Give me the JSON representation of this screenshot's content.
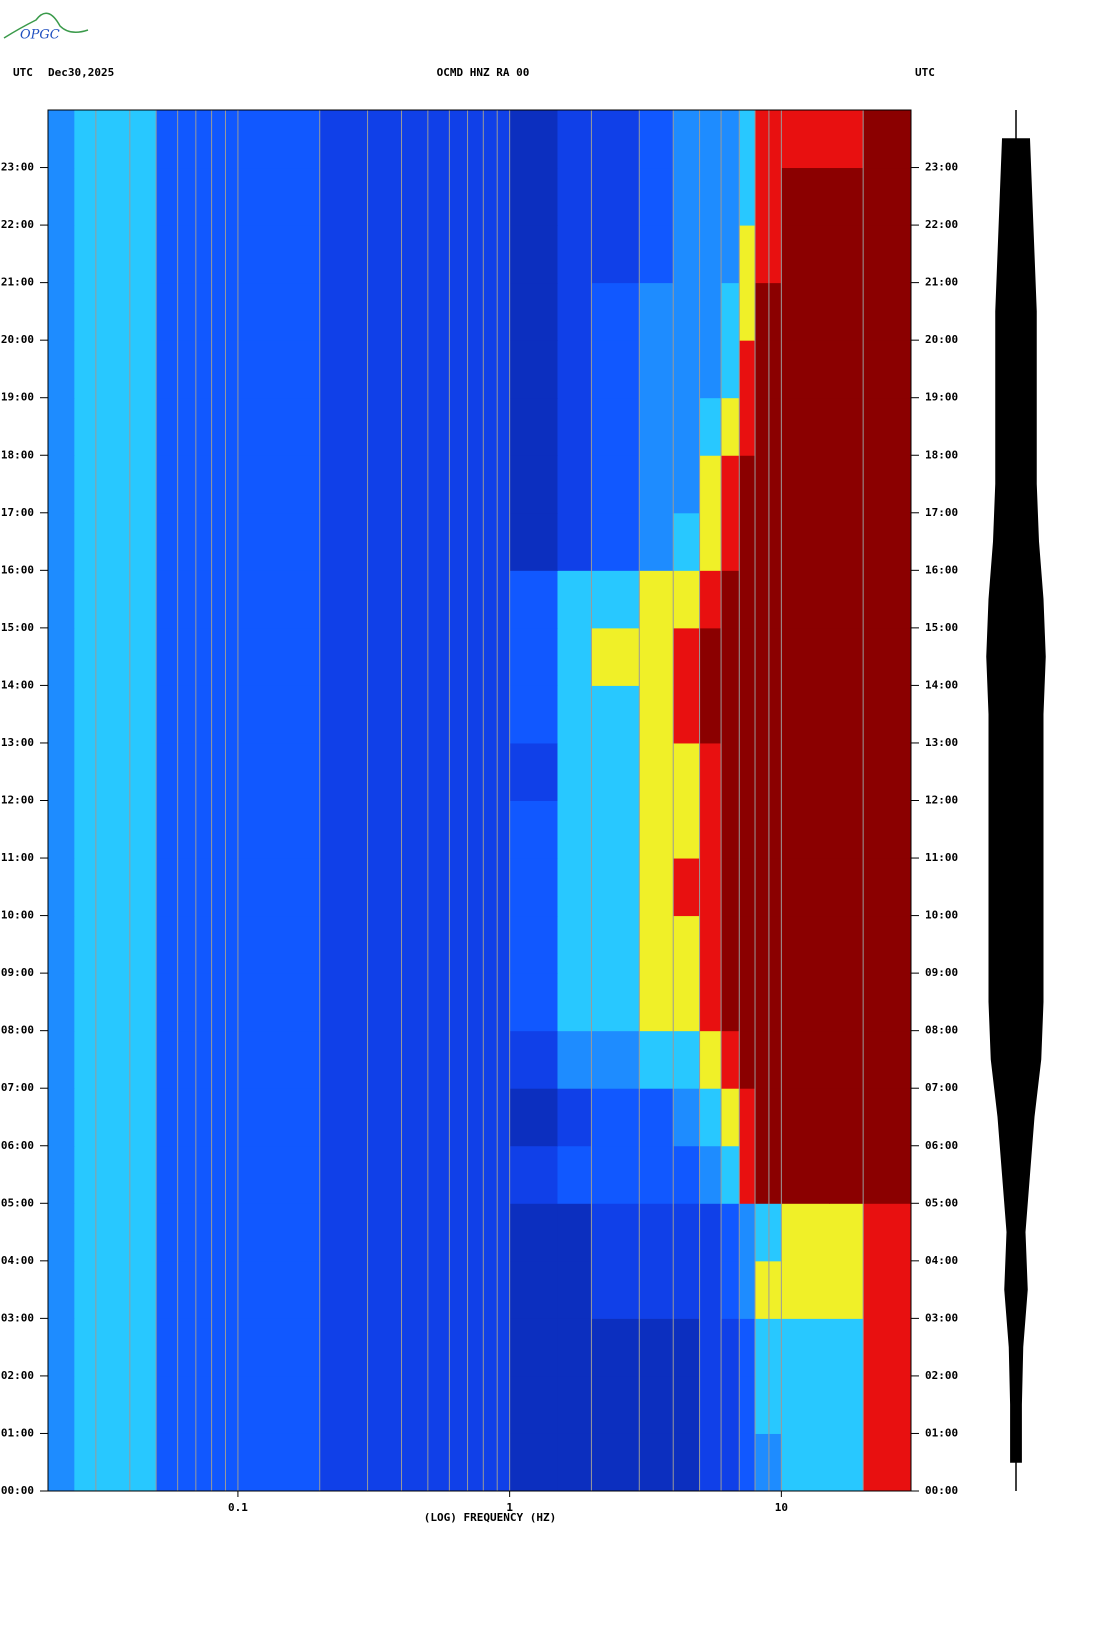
{
  "logo": "OPGC",
  "chart_data": {
    "type": "spectrogram",
    "header": {
      "left_zone": "UTC",
      "date": "Dec30,2025",
      "station": "OCMD HNZ RA 00",
      "right_zone": "UTC"
    },
    "xlabel": "(LOG) FREQUENCY (HZ)",
    "xscale": "log",
    "xlim": [
      0.02,
      30
    ],
    "xticks": [
      0.1,
      1,
      10
    ],
    "xgrid": [
      0.03,
      0.04,
      0.05,
      0.06,
      0.07,
      0.08,
      0.09,
      0.1,
      0.2,
      0.3,
      0.4,
      0.5,
      0.6,
      0.7,
      0.8,
      0.9,
      1,
      2,
      3,
      4,
      5,
      6,
      7,
      8,
      9,
      10,
      20
    ],
    "ylim": [
      0,
      24
    ],
    "yticks": [
      {
        "value": 0,
        "label": "00:00"
      },
      {
        "value": 1,
        "label": "01:00"
      },
      {
        "value": 2,
        "label": "02:00"
      },
      {
        "value": 3,
        "label": "03:00"
      },
      {
        "value": 4,
        "label": "04:00"
      },
      {
        "value": 5,
        "label": "05:00"
      },
      {
        "value": 6,
        "label": "06:00"
      },
      {
        "value": 7,
        "label": "07:00"
      },
      {
        "value": 8,
        "label": "08:00"
      },
      {
        "value": 9,
        "label": "09:00"
      },
      {
        "value": 10,
        "label": "10:00"
      },
      {
        "value": 11,
        "label": "11:00"
      },
      {
        "value": 12,
        "label": "12:00"
      },
      {
        "value": 13,
        "label": "13:00"
      },
      {
        "value": 14,
        "label": "14:00"
      },
      {
        "value": 15,
        "label": "15:00"
      },
      {
        "value": 16,
        "label": "16:00"
      },
      {
        "value": 17,
        "label": "17:00"
      },
      {
        "value": 18,
        "label": "18:00"
      },
      {
        "value": 19,
        "label": "19:00"
      },
      {
        "value": 20,
        "label": "20:00"
      },
      {
        "value": 21,
        "label": "21:00"
      },
      {
        "value": 22,
        "label": "22:00"
      },
      {
        "value": 23,
        "label": "23:00"
      }
    ],
    "freq_bins": [
      0.02,
      0.025,
      0.05,
      0.07,
      0.1,
      0.2,
      0.4,
      1,
      1.5,
      2,
      3,
      4,
      5,
      6,
      7,
      8,
      10,
      15,
      20,
      30
    ],
    "time_bins": [
      0,
      1,
      2,
      3,
      4,
      5,
      6,
      7,
      8,
      9,
      10,
      11,
      12,
      13,
      14,
      15,
      16,
      17,
      18,
      19,
      20,
      21,
      22,
      23,
      24
    ],
    "colors": [
      "#0c2fbf",
      "#1040e8",
      "#1158ff",
      "#1e8cff",
      "#28c8ff",
      "#f0f028",
      "#e81010",
      "#8b0000"
    ],
    "z": [
      [
        3,
        4,
        2,
        2,
        2,
        1,
        1,
        0,
        0,
        0,
        0,
        0,
        1,
        1,
        2,
        3,
        4,
        4,
        6
      ],
      [
        3,
        4,
        2,
        2,
        2,
        1,
        1,
        0,
        0,
        0,
        0,
        0,
        1,
        1,
        2,
        4,
        4,
        4,
        6
      ],
      [
        3,
        4,
        2,
        2,
        2,
        1,
        1,
        0,
        0,
        0,
        0,
        0,
        1,
        1,
        2,
        4,
        4,
        4,
        6
      ],
      [
        3,
        4,
        2,
        2,
        2,
        1,
        1,
        0,
        0,
        1,
        1,
        1,
        1,
        2,
        3,
        5,
        5,
        5,
        6
      ],
      [
        3,
        4,
        2,
        2,
        2,
        1,
        1,
        0,
        0,
        1,
        1,
        1,
        1,
        2,
        3,
        4,
        5,
        5,
        6
      ],
      [
        3,
        4,
        2,
        2,
        2,
        1,
        1,
        1,
        2,
        2,
        2,
        2,
        3,
        4,
        6,
        7,
        7,
        7,
        7
      ],
      [
        3,
        4,
        2,
        2,
        2,
        1,
        1,
        0,
        1,
        2,
        2,
        3,
        4,
        5,
        6,
        7,
        7,
        7,
        7
      ],
      [
        3,
        4,
        2,
        2,
        2,
        1,
        1,
        1,
        3,
        3,
        4,
        4,
        5,
        6,
        7,
        7,
        7,
        7,
        7
      ],
      [
        3,
        4,
        2,
        2,
        2,
        1,
        1,
        2,
        4,
        4,
        5,
        5,
        6,
        7,
        7,
        7,
        7,
        7,
        7
      ],
      [
        3,
        4,
        2,
        2,
        2,
        1,
        1,
        2,
        4,
        4,
        5,
        5,
        6,
        7,
        7,
        7,
        7,
        7,
        7
      ],
      [
        3,
        4,
        2,
        2,
        2,
        1,
        1,
        2,
        4,
        4,
        5,
        6,
        6,
        7,
        7,
        7,
        7,
        7,
        7
      ],
      [
        3,
        4,
        2,
        2,
        2,
        1,
        1,
        2,
        4,
        4,
        5,
        5,
        6,
        7,
        7,
        7,
        7,
        7,
        7
      ],
      [
        3,
        4,
        2,
        2,
        2,
        1,
        1,
        1,
        4,
        4,
        5,
        5,
        6,
        7,
        7,
        7,
        7,
        7,
        7
      ],
      [
        3,
        4,
        2,
        2,
        2,
        1,
        1,
        2,
        4,
        4,
        5,
        6,
        7,
        7,
        7,
        7,
        7,
        7,
        7
      ],
      [
        3,
        4,
        2,
        2,
        2,
        1,
        1,
        2,
        4,
        5,
        5,
        6,
        7,
        7,
        7,
        7,
        7,
        7,
        7
      ],
      [
        3,
        4,
        2,
        2,
        2,
        1,
        1,
        2,
        4,
        4,
        5,
        5,
        6,
        7,
        7,
        7,
        7,
        7,
        7
      ],
      [
        3,
        4,
        2,
        2,
        2,
        1,
        1,
        0,
        1,
        2,
        3,
        4,
        5,
        6,
        7,
        7,
        7,
        7,
        7
      ],
      [
        3,
        4,
        2,
        2,
        2,
        1,
        1,
        0,
        1,
        2,
        3,
        3,
        5,
        6,
        7,
        7,
        7,
        7,
        7
      ],
      [
        3,
        4,
        2,
        2,
        2,
        1,
        1,
        0,
        1,
        2,
        3,
        3,
        4,
        5,
        6,
        7,
        7,
        7,
        7
      ],
      [
        3,
        4,
        2,
        2,
        2,
        1,
        1,
        0,
        1,
        2,
        3,
        3,
        3,
        4,
        6,
        7,
        7,
        7,
        7
      ],
      [
        3,
        4,
        2,
        2,
        2,
        1,
        1,
        0,
        1,
        2,
        3,
        3,
        3,
        4,
        5,
        7,
        7,
        7,
        7
      ],
      [
        3,
        4,
        2,
        2,
        2,
        1,
        1,
        0,
        1,
        1,
        2,
        3,
        3,
        3,
        5,
        6,
        7,
        7,
        7
      ],
      [
        3,
        4,
        2,
        2,
        2,
        1,
        1,
        0,
        1,
        1,
        2,
        3,
        3,
        3,
        4,
        6,
        7,
        7,
        7
      ],
      [
        3,
        4,
        2,
        2,
        2,
        1,
        1,
        0,
        1,
        1,
        2,
        3,
        3,
        3,
        4,
        6,
        6,
        6,
        7
      ]
    ],
    "grid_color": "#9a9a9a",
    "trace_color": "#000000",
    "trace_envelope": [
      0.12,
      0.12,
      0.15,
      0.25,
      0.2,
      0.3,
      0.4,
      0.55,
      0.6,
      0.6,
      0.6,
      0.6,
      0.6,
      0.6,
      0.65,
      0.6,
      0.5,
      0.45,
      0.45,
      0.45,
      0.45,
      0.4,
      0.35,
      0.3
    ]
  }
}
